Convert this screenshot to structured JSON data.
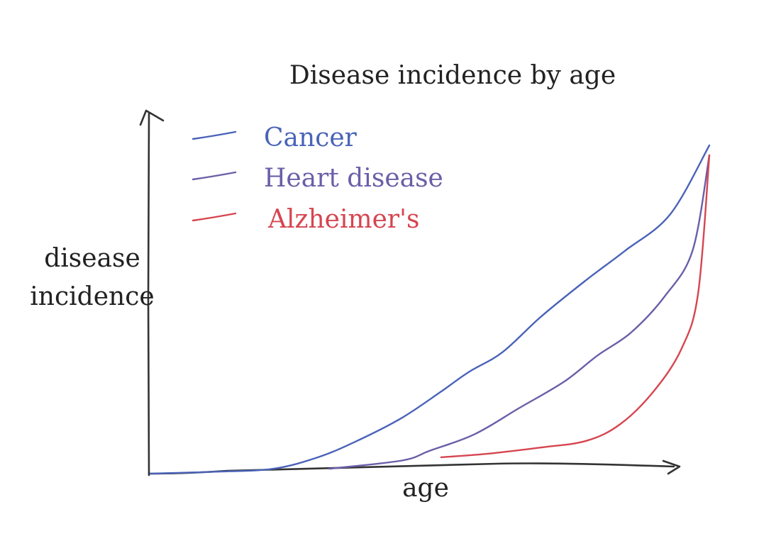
{
  "chart_data": {
    "type": "line",
    "title": "Disease incidence by age",
    "xlabel": "age",
    "ylabel_lines": [
      "disease",
      "incidence"
    ],
    "xlim": [
      0,
      100
    ],
    "ylim": [
      0,
      100
    ],
    "grid": false,
    "legend_position": "top-left",
    "series": [
      {
        "name": "Cancer",
        "color": "#4a63b8",
        "points": [
          [
            0,
            0
          ],
          [
            12,
            0.6
          ],
          [
            22,
            1.5
          ],
          [
            30,
            5
          ],
          [
            37,
            10
          ],
          [
            45,
            17
          ],
          [
            52,
            25
          ],
          [
            57,
            31
          ],
          [
            63,
            37
          ],
          [
            70,
            48
          ],
          [
            78,
            59
          ],
          [
            85,
            68
          ],
          [
            93,
            79
          ],
          [
            100,
            100
          ]
        ]
      },
      {
        "name": "Heart disease",
        "color": "#6a5fa8",
        "points": [
          [
            32,
            1.5
          ],
          [
            45,
            4
          ],
          [
            50,
            7
          ],
          [
            58,
            12
          ],
          [
            66,
            20
          ],
          [
            74,
            28
          ],
          [
            80,
            36
          ],
          [
            86,
            43
          ],
          [
            92,
            54
          ],
          [
            97,
            68
          ],
          [
            100,
            97
          ]
        ]
      },
      {
        "name": "Alzheimer's",
        "color": "#d64550",
        "points": [
          [
            52,
            5
          ],
          [
            60,
            6
          ],
          [
            70,
            8
          ],
          [
            78,
            10
          ],
          [
            84,
            15
          ],
          [
            90,
            25
          ],
          [
            95,
            38
          ],
          [
            98,
            55
          ],
          [
            100,
            97
          ]
        ]
      }
    ]
  }
}
